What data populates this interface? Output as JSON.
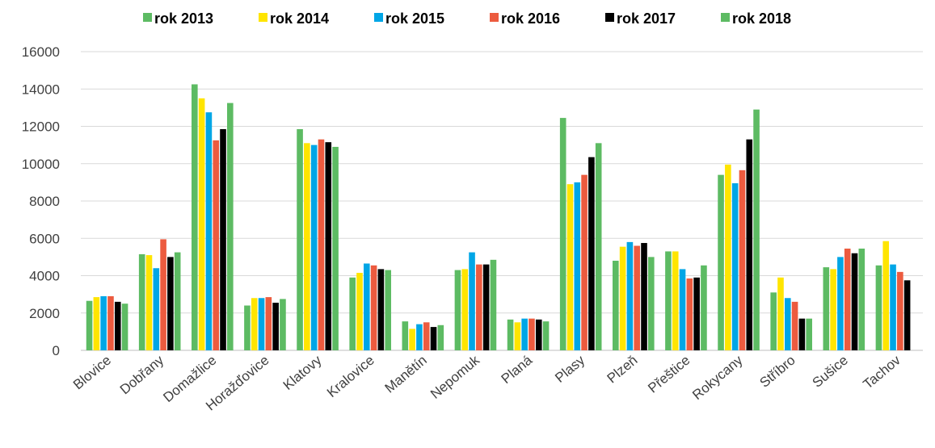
{
  "chart_data": {
    "type": "bar",
    "categories": [
      "Blovice",
      "Dobřany",
      "Domažlice",
      "Horažďovice",
      "Klatovy",
      "Kralovice",
      "Manětín",
      "Nepomuk",
      "Planá",
      "Plasy",
      "Plzeň",
      "Přeštice",
      "Rokycany",
      "Stříbro",
      "Sušice",
      "Tachov"
    ],
    "series": [
      {
        "name": "rok 2013",
        "color": "#5dbb63",
        "values": [
          2650,
          5150,
          14250,
          2400,
          11850,
          3900,
          1550,
          4300,
          1650,
          12450,
          4800,
          5300,
          9400,
          3100,
          4450,
          4550
        ]
      },
      {
        "name": "rok 2014",
        "color": "#ffe500",
        "values": [
          2850,
          5100,
          13500,
          2800,
          11100,
          4150,
          1150,
          4350,
          1500,
          8900,
          5550,
          5300,
          9950,
          3900,
          4350,
          5850
        ]
      },
      {
        "name": "rok 2015",
        "color": "#00a6e6",
        "values": [
          2900,
          4400,
          12750,
          2800,
          11000,
          4650,
          1400,
          5250,
          1700,
          9000,
          5800,
          4350,
          8950,
          2800,
          5000,
          4600
        ]
      },
      {
        "name": "rok 2016",
        "color": "#ec5b3f",
        "values": [
          2900,
          5950,
          11250,
          2850,
          11300,
          4550,
          1500,
          4600,
          1700,
          9400,
          5600,
          3850,
          9650,
          2600,
          5450,
          4200
        ]
      },
      {
        "name": "rok 2017",
        "color": "#000000",
        "values": [
          2600,
          5000,
          11850,
          2550,
          11150,
          4350,
          1250,
          4600,
          1650,
          10350,
          5750,
          3900,
          11300,
          1700,
          5200,
          3750
        ]
      },
      {
        "name": "rok 2018",
        "color": "#5dbb63",
        "values": [
          2500,
          5250,
          13250,
          2750,
          10900,
          4300,
          1350,
          4850,
          1550,
          11100,
          5000,
          4550,
          12900,
          1700,
          5450,
          null
        ]
      }
    ],
    "ylim": [
      0,
      16000
    ],
    "yticks": [
      0,
      2000,
      4000,
      6000,
      8000,
      10000,
      12000,
      14000,
      16000
    ],
    "grid": true,
    "legend": "top"
  }
}
